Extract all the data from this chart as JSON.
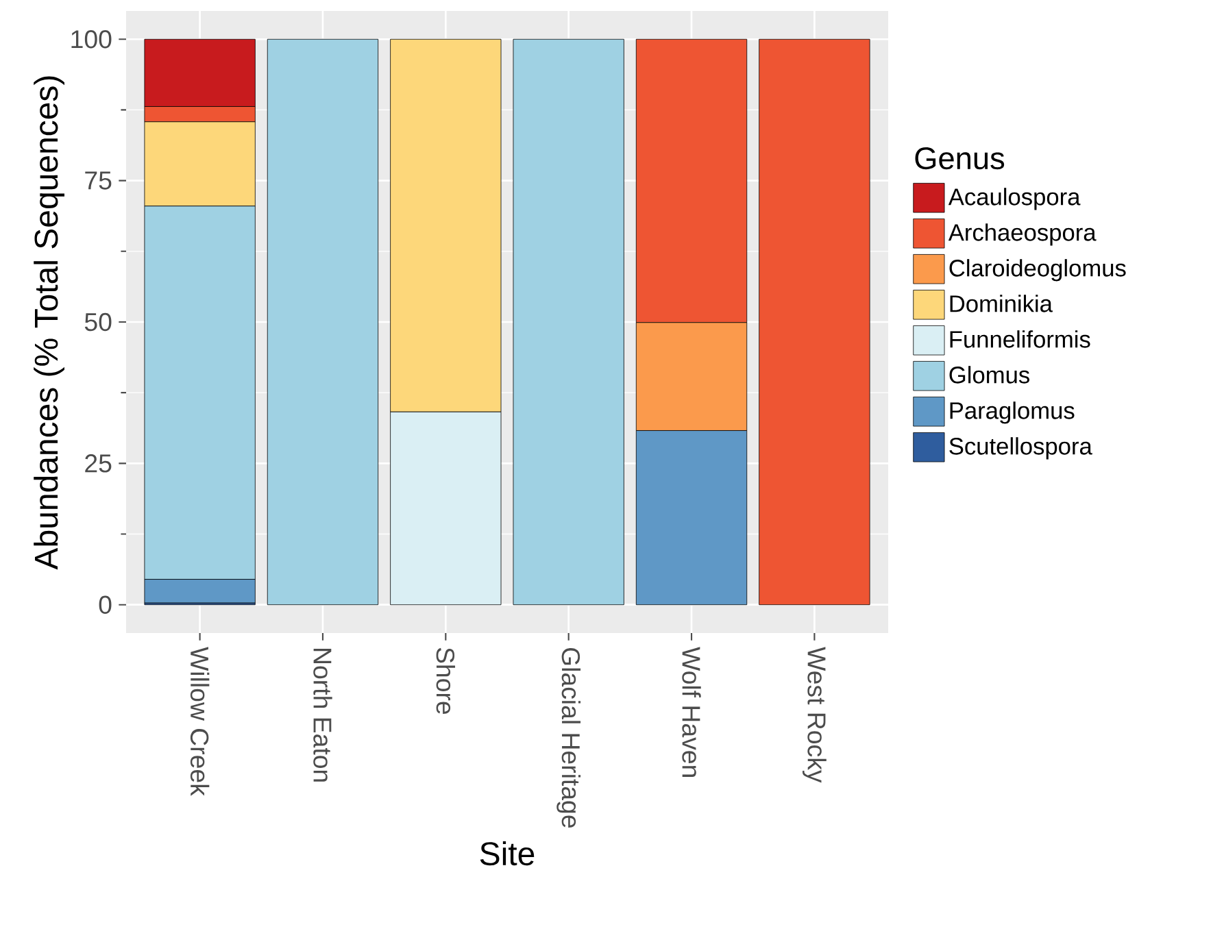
{
  "chart_data": {
    "type": "bar",
    "stacked": true,
    "xlabel": "Site",
    "ylabel": "Abundances (% Total Sequences)",
    "legend_title": "Genus",
    "legend": "right",
    "grid": true,
    "categories": [
      "Willow Creek",
      "North Eaton",
      "Shore",
      "Glacial Heritage",
      "Wolf Haven",
      "West Rocky"
    ],
    "ylim": [
      -5,
      105
    ],
    "yticks": [
      0,
      25,
      50,
      75,
      100
    ],
    "series": [
      {
        "name": "Scutellospora",
        "color": "#2f5d9e",
        "values": [
          0.3,
          0,
          0,
          0,
          0,
          0
        ]
      },
      {
        "name": "Paraglomus",
        "color": "#5f98c6",
        "values": [
          4.2,
          0,
          0,
          0,
          30.8,
          0
        ]
      },
      {
        "name": "Glomus",
        "color": "#9fd1e3",
        "values": [
          66.0,
          100,
          0,
          100,
          0,
          0
        ]
      },
      {
        "name": "Funneliformis",
        "color": "#daeff4",
        "values": [
          0,
          0,
          34.1,
          0,
          0,
          0
        ]
      },
      {
        "name": "Dominikia",
        "color": "#fdd77a",
        "values": [
          14.9,
          0,
          65.9,
          0,
          0,
          0
        ]
      },
      {
        "name": "Claroideoglomus",
        "color": "#fb9a4c",
        "values": [
          0,
          0,
          0,
          0,
          19.1,
          0
        ]
      },
      {
        "name": "Archaeospora",
        "color": "#ee5533",
        "values": [
          2.7,
          0,
          0,
          0,
          50.1,
          100
        ]
      },
      {
        "name": "Acaulospora",
        "color": "#c81b1e",
        "values": [
          11.9,
          0,
          0,
          0,
          0,
          0
        ]
      }
    ]
  }
}
